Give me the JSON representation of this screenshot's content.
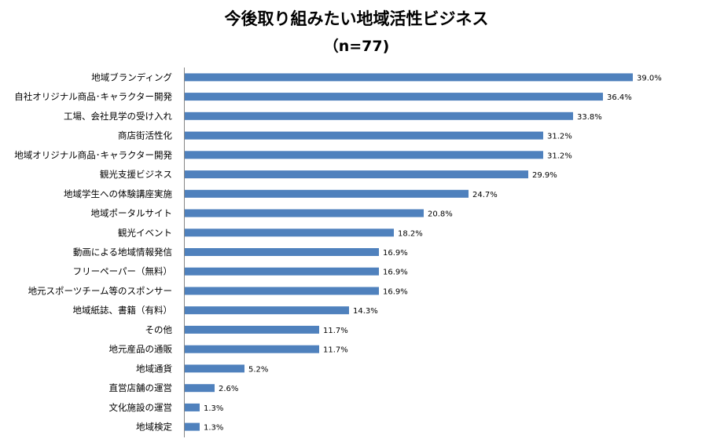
{
  "chart_data": {
    "type": "bar",
    "orientation": "horizontal",
    "title": "今後取り組みたい地域活性ビジネス",
    "subtitle": "（n=77)",
    "value_suffix": "%",
    "categories": [
      "地域ブランディング",
      "自社オリジナル商品･キャラクター開発",
      "工場、会社見学の受け入れ",
      "商店街活性化",
      "地域オリジナル商品･キャラクター開発",
      "観光支援ビジネス",
      "地域学生への体験講座実施",
      "地域ポータルサイト",
      "観光イベント",
      "動画による地域情報発信",
      "フリーペーパー（無料）",
      "地元スポーツチーム等のスポンサー",
      "地域紙誌、書籍（有料）",
      "その他",
      "地元産品の通販",
      "地域通貨",
      "直営店舗の運営",
      "文化施設の運営",
      "地域検定"
    ],
    "values": [
      39.0,
      36.4,
      33.8,
      31.2,
      31.2,
      29.9,
      24.7,
      20.8,
      18.2,
      16.9,
      16.9,
      16.9,
      14.3,
      11.7,
      11.7,
      5.2,
      2.6,
      1.3,
      1.3
    ],
    "value_labels": [
      "39.0%",
      "36.4%",
      "33.8%",
      "31.2%",
      "31.2%",
      "29.9%",
      "24.7%",
      "20.8%",
      "18.2%",
      "16.9%",
      "16.9%",
      "16.9%",
      "14.3%",
      "11.7%",
      "11.7%",
      "5.2%",
      "2.6%",
      "1.3%",
      "1.3%"
    ],
    "xlim": [
      0,
      39.0
    ],
    "grid": false,
    "legend": "none",
    "bar_color": "#4f81bd"
  }
}
